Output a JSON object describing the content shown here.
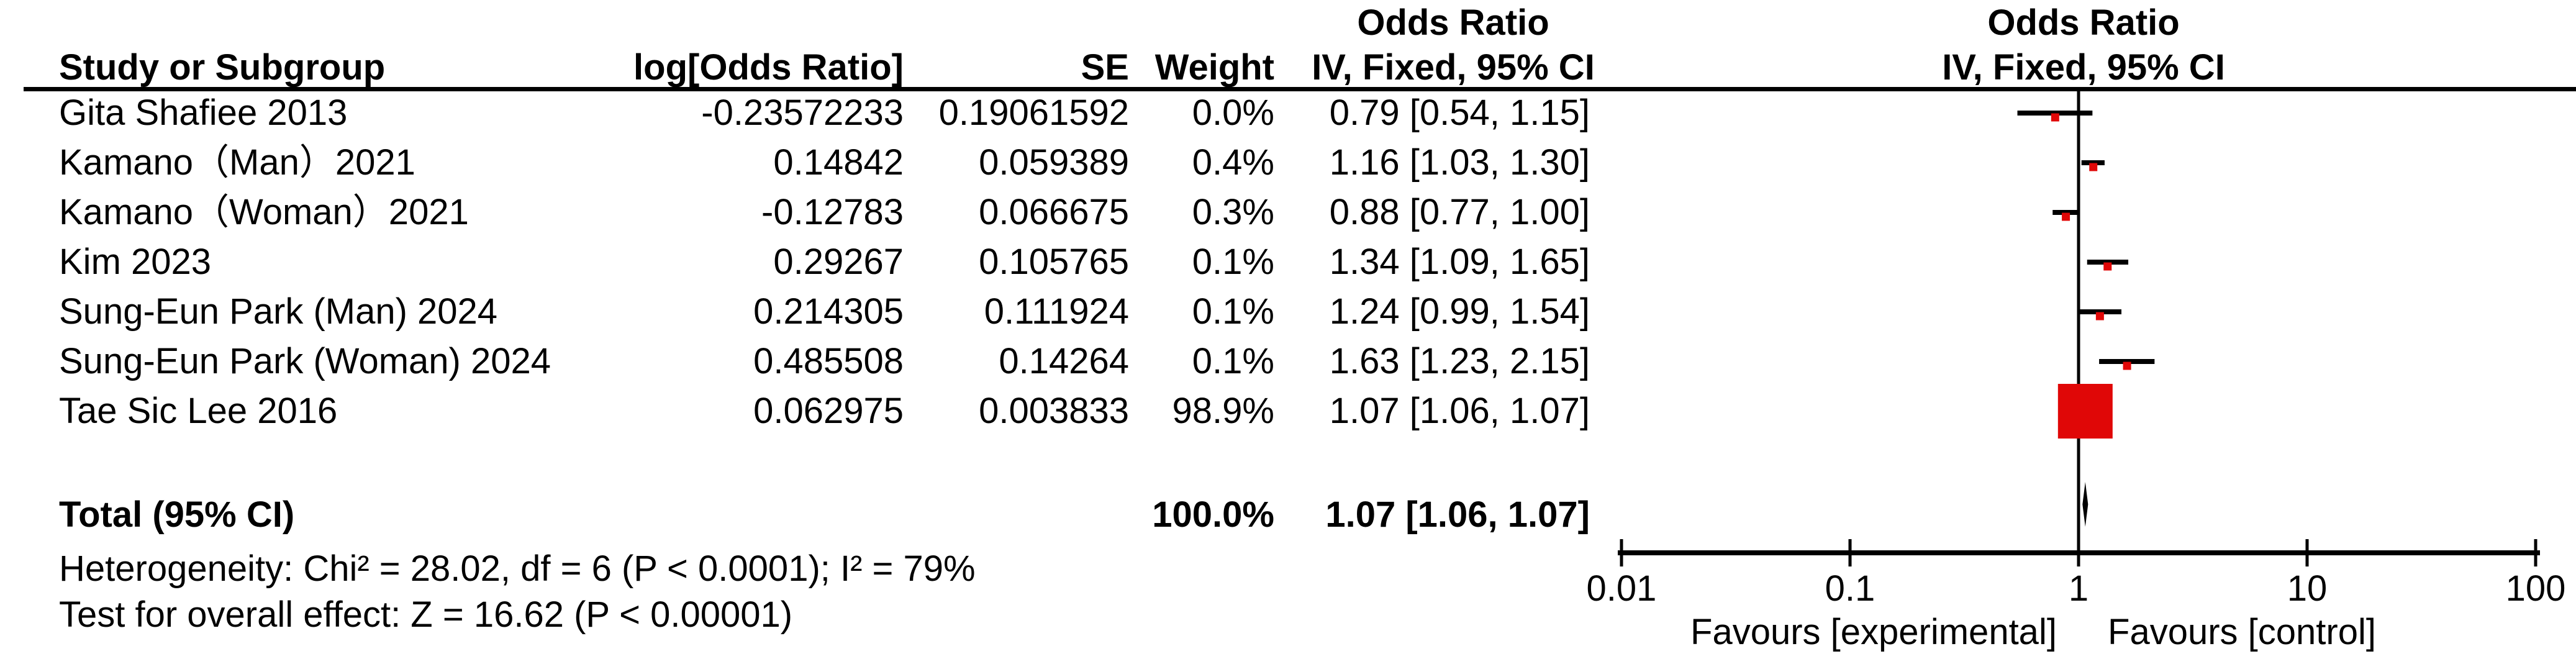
{
  "table": {
    "header": {
      "study": "Study or Subgroup",
      "log_or": "log[Odds Ratio]",
      "se": "SE",
      "weight": "Weight",
      "effect_line1": "Odds Ratio",
      "effect_line2": "IV, Fixed, 95% CI"
    },
    "plot_header": {
      "line1": "Odds Ratio",
      "line2": "IV, Fixed, 95% CI"
    },
    "rows": [
      {
        "study": "Gita Shafiee 2013",
        "log_or": "-0.23572233",
        "se": "0.19061592",
        "weight": "0.0%",
        "or_ci": "0.79 [0.54, 1.15]"
      },
      {
        "study": "Kamano（Man）2021",
        "log_or": "0.14842",
        "se": "0.059389",
        "weight": "0.4%",
        "or_ci": "1.16 [1.03, 1.30]"
      },
      {
        "study": "Kamano（Woman）2021",
        "log_or": "-0.12783",
        "se": "0.066675",
        "weight": "0.3%",
        "or_ci": "0.88 [0.77, 1.00]"
      },
      {
        "study": "Kim 2023",
        "log_or": "0.29267",
        "se": "0.105765",
        "weight": "0.1%",
        "or_ci": "1.34 [1.09, 1.65]"
      },
      {
        "study": "Sung-Eun Park (Man) 2024",
        "log_or": "0.214305",
        "se": "0.111924",
        "weight": "0.1%",
        "or_ci": "1.24 [0.99, 1.54]"
      },
      {
        "study": "Sung-Eun Park (Woman) 2024",
        "log_or": "0.485508",
        "se": "0.14264",
        "weight": "0.1%",
        "or_ci": "1.63 [1.23, 2.15]"
      },
      {
        "study": "Tae Sic Lee 2016",
        "log_or": "0.062975",
        "se": "0.003833",
        "weight": "98.9%",
        "or_ci": "1.07 [1.06, 1.07]"
      }
    ],
    "total": {
      "label": "Total (95% CI)",
      "weight": "100.0%",
      "or_ci": "1.07 [1.06, 1.07]"
    },
    "heterogeneity": "Heterogeneity: Chi² = 28.02, df = 6 (P < 0.0001); I² = 79%",
    "overall_effect": "Test for overall effect: Z = 16.62 (P < 0.00001)"
  },
  "axis": {
    "tick_labels": [
      "0.01",
      "0.1",
      "1",
      "10",
      "100"
    ],
    "favours_left": "Favours [experimental]",
    "favours_right": "Favours [control]"
  },
  "colors": {
    "marker_red": "#E00707",
    "line_black": "#000000"
  },
  "chart_data": {
    "type": "forest",
    "effect_measure": "Odds Ratio",
    "model": "IV, Fixed, 95% CI",
    "x_scale": "log10",
    "x_ticks": [
      0.01,
      0.1,
      1,
      10,
      100
    ],
    "xlim": [
      0.01,
      100
    ],
    "no_effect_line": 1,
    "studies": [
      {
        "name": "Gita Shafiee 2013",
        "log_or": -0.23572233,
        "se": 0.19061592,
        "weight_pct": 0.0,
        "or": 0.79,
        "ci_low": 0.54,
        "ci_high": 1.15
      },
      {
        "name": "Kamano（Man）2021",
        "log_or": 0.14842,
        "se": 0.059389,
        "weight_pct": 0.4,
        "or": 1.16,
        "ci_low": 1.03,
        "ci_high": 1.3
      },
      {
        "name": "Kamano（Woman）2021",
        "log_or": -0.12783,
        "se": 0.066675,
        "weight_pct": 0.3,
        "or": 0.88,
        "ci_low": 0.77,
        "ci_high": 1.0
      },
      {
        "name": "Kim 2023",
        "log_or": 0.29267,
        "se": 0.105765,
        "weight_pct": 0.1,
        "or": 1.34,
        "ci_low": 1.09,
        "ci_high": 1.65
      },
      {
        "name": "Sung-Eun Park (Man) 2024",
        "log_or": 0.214305,
        "se": 0.111924,
        "weight_pct": 0.1,
        "or": 1.24,
        "ci_low": 0.99,
        "ci_high": 1.54
      },
      {
        "name": "Sung-Eun Park (Woman) 2024",
        "log_or": 0.485508,
        "se": 0.14264,
        "weight_pct": 0.1,
        "or": 1.63,
        "ci_low": 1.23,
        "ci_high": 2.15
      },
      {
        "name": "Tae Sic Lee 2016",
        "log_or": 0.062975,
        "se": 0.003833,
        "weight_pct": 98.9,
        "or": 1.07,
        "ci_low": 1.06,
        "ci_high": 1.07
      }
    ],
    "total": {
      "or": 1.07,
      "ci_low": 1.06,
      "ci_high": 1.07,
      "weight_pct": 100.0
    },
    "heterogeneity": {
      "chi2": 28.02,
      "df": 6,
      "p": "< 0.0001",
      "i2_pct": 79
    },
    "overall_effect": {
      "z": 16.62,
      "p": "< 0.00001"
    },
    "legend_left": "Favours [experimental]",
    "legend_right": "Favours [control]"
  }
}
